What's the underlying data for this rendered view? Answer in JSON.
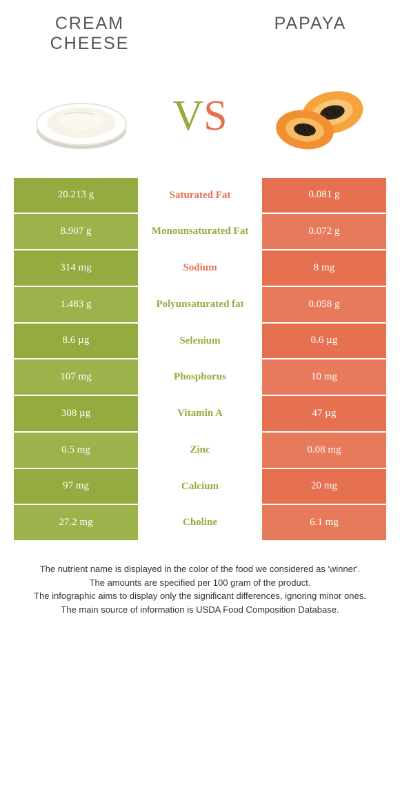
{
  "colors": {
    "left": "#94ab3f",
    "right": "#e57150",
    "left_alt": "#9cb24a",
    "right_alt": "#e77a5b"
  },
  "foods": {
    "left": {
      "name": "CREAM CHEESE"
    },
    "right": {
      "name": "PAPAYA"
    }
  },
  "vs": {
    "v": "V",
    "s": "S"
  },
  "rows": [
    {
      "label": "Saturated Fat",
      "left": "20.213 g",
      "right": "0.081 g",
      "winner": "right"
    },
    {
      "label": "Monounsaturated Fat",
      "left": "8.907 g",
      "right": "0.072 g",
      "winner": "left"
    },
    {
      "label": "Sodium",
      "left": "314 mg",
      "right": "8 mg",
      "winner": "right"
    },
    {
      "label": "Polyunsaturated fat",
      "left": "1.483 g",
      "right": "0.058 g",
      "winner": "left"
    },
    {
      "label": "Selenium",
      "left": "8.6 µg",
      "right": "0.6 µg",
      "winner": "left"
    },
    {
      "label": "Phosphorus",
      "left": "107 mg",
      "right": "10 mg",
      "winner": "left"
    },
    {
      "label": "Vitamin A",
      "left": "308 µg",
      "right": "47 µg",
      "winner": "left"
    },
    {
      "label": "Zinc",
      "left": "0.5 mg",
      "right": "0.08 mg",
      "winner": "left"
    },
    {
      "label": "Calcium",
      "left": "97 mg",
      "right": "20 mg",
      "winner": "left"
    },
    {
      "label": "Choline",
      "left": "27.2 mg",
      "right": "6.1 mg",
      "winner": "left"
    }
  ],
  "footer": {
    "line1": "The nutrient name is displayed in the color of the food we considered as 'winner'.",
    "line2": "The amounts are specified per 100 gram of the product.",
    "line3": "The infographic aims to display only the significant differences, ignoring minor ones.",
    "line4": "The main source of information is USDA Food Composition Database."
  }
}
